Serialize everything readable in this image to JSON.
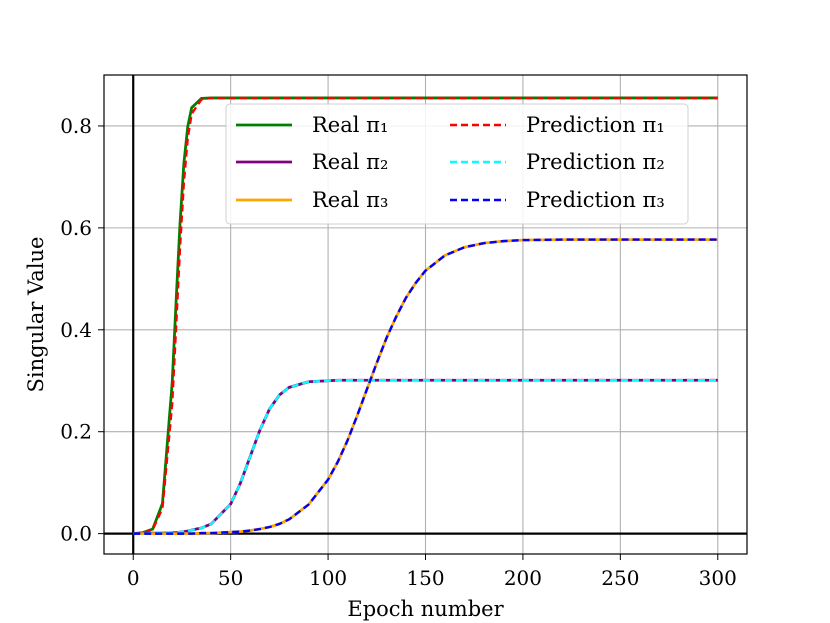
{
  "chart_data": {
    "type": "line",
    "xlabel": "Epoch number",
    "ylabel": "Singular Value",
    "xlim": [
      -15,
      315
    ],
    "ylim": [
      -0.04,
      0.9
    ],
    "xticks": [
      0,
      50,
      100,
      150,
      200,
      250,
      300
    ],
    "yticks": [
      0.0,
      0.2,
      0.4,
      0.6,
      0.8
    ],
    "xtick_labels": [
      "0",
      "50",
      "100",
      "150",
      "200",
      "250",
      "300"
    ],
    "ytick_labels": [
      "0.0",
      "0.2",
      "0.4",
      "0.6",
      "0.8"
    ],
    "grid": true,
    "zero_lines": true,
    "legend_position": "top-center",
    "legend_columns": 2,
    "x": [
      0,
      5,
      10,
      15,
      20,
      22,
      24,
      26,
      28,
      30,
      35,
      40,
      50,
      55,
      60,
      65,
      70,
      75,
      80,
      90,
      100,
      105,
      110,
      115,
      120,
      125,
      130,
      135,
      140,
      145,
      150,
      160,
      170,
      180,
      190,
      200,
      220,
      250,
      300
    ],
    "series": [
      {
        "name": "Real π₁",
        "color": "#008000",
        "style": "solid",
        "values": [
          0.0,
          0.002,
          0.009,
          0.059,
          0.296,
          0.455,
          0.607,
          0.727,
          0.799,
          0.836,
          0.854,
          0.855,
          0.855,
          0.855,
          0.855,
          0.855,
          0.855,
          0.855,
          0.855,
          0.855,
          0.855,
          0.855,
          0.855,
          0.855,
          0.855,
          0.855,
          0.855,
          0.855,
          0.855,
          0.855,
          0.855,
          0.855,
          0.855,
          0.855,
          0.855,
          0.855,
          0.855,
          0.855,
          0.855
        ]
      },
      {
        "name": "Real π₂",
        "color": "#800080",
        "style": "solid",
        "values": [
          0.0,
          0.0,
          0.001,
          0.001,
          0.002,
          0.002,
          0.003,
          0.004,
          0.005,
          0.007,
          0.011,
          0.019,
          0.058,
          0.099,
          0.151,
          0.203,
          0.245,
          0.272,
          0.287,
          0.298,
          0.3,
          0.301,
          0.301,
          0.301,
          0.301,
          0.301,
          0.301,
          0.301,
          0.301,
          0.301,
          0.301,
          0.301,
          0.301,
          0.301,
          0.301,
          0.301,
          0.301,
          0.301,
          0.301
        ]
      },
      {
        "name": "Real π₃",
        "color": "#ffa500",
        "style": "solid",
        "values": [
          0.0,
          0.0,
          0.0,
          0.0,
          0.0,
          0.0,
          0.0,
          0.0,
          0.0,
          0.0,
          0.001,
          0.001,
          0.003,
          0.004,
          0.006,
          0.009,
          0.013,
          0.019,
          0.028,
          0.057,
          0.106,
          0.141,
          0.183,
          0.232,
          0.284,
          0.335,
          0.384,
          0.426,
          0.463,
          0.492,
          0.516,
          0.546,
          0.562,
          0.57,
          0.574,
          0.576,
          0.577,
          0.577,
          0.577
        ]
      },
      {
        "name": "Prediction π₁",
        "color": "#ff0000",
        "style": "dashed",
        "values": [
          0.0,
          0.001,
          0.008,
          0.05,
          0.255,
          0.405,
          0.56,
          0.69,
          0.777,
          0.824,
          0.852,
          0.855,
          0.855,
          0.855,
          0.855,
          0.855,
          0.855,
          0.855,
          0.855,
          0.855,
          0.855,
          0.855,
          0.855,
          0.855,
          0.855,
          0.855,
          0.855,
          0.855,
          0.855,
          0.855,
          0.855,
          0.855,
          0.855,
          0.855,
          0.855,
          0.855,
          0.855,
          0.855,
          0.855
        ]
      },
      {
        "name": "Prediction π₂",
        "color": "#00ffff",
        "style": "dashed",
        "values": [
          0.0,
          0.0,
          0.001,
          0.001,
          0.002,
          0.002,
          0.003,
          0.004,
          0.005,
          0.007,
          0.011,
          0.019,
          0.058,
          0.099,
          0.151,
          0.203,
          0.245,
          0.272,
          0.287,
          0.298,
          0.3,
          0.301,
          0.301,
          0.301,
          0.301,
          0.301,
          0.301,
          0.301,
          0.301,
          0.301,
          0.301,
          0.301,
          0.301,
          0.301,
          0.301,
          0.301,
          0.301,
          0.301,
          0.301
        ]
      },
      {
        "name": "Prediction π₃",
        "color": "#0000ff",
        "style": "dashed",
        "values": [
          0.0,
          0.0,
          0.0,
          0.0,
          0.0,
          0.0,
          0.0,
          0.0,
          0.0,
          0.0,
          0.001,
          0.001,
          0.003,
          0.004,
          0.006,
          0.009,
          0.013,
          0.019,
          0.028,
          0.057,
          0.106,
          0.141,
          0.183,
          0.232,
          0.284,
          0.335,
          0.384,
          0.426,
          0.463,
          0.492,
          0.516,
          0.546,
          0.562,
          0.57,
          0.574,
          0.576,
          0.577,
          0.577,
          0.577
        ]
      }
    ]
  }
}
